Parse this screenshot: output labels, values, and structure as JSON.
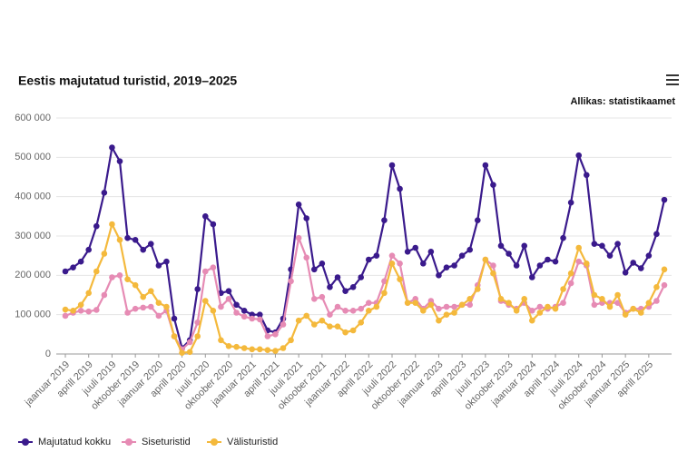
{
  "chart_data": {
    "type": "line",
    "title": "Eestis majutatud turistid, 2019–2025",
    "source": "Allikas: statistikaamet",
    "categories": [
      "jaanuar 2019",
      null,
      null,
      "aprill 2019",
      null,
      null,
      "juuli 2019",
      null,
      null,
      "oktoober 2019",
      null,
      null,
      "jaanuar 2020",
      null,
      null,
      "aprill 2020",
      null,
      null,
      "juuli 2020",
      null,
      null,
      "oktoober 2020",
      null,
      null,
      "jaanuar 2021",
      null,
      null,
      "aprill 2021",
      null,
      null,
      "juuli 2021",
      null,
      null,
      "oktoober 2021",
      null,
      null,
      "jaanuar 2022",
      null,
      null,
      "aprill 2022",
      null,
      null,
      "juuli 2022",
      null,
      null,
      "oktoober 2022",
      null,
      null,
      "jaanuar 2023",
      null,
      null,
      "aprill 2023",
      null,
      null,
      "juuli 2023",
      null,
      null,
      "oktoober 2023",
      null,
      null,
      "jaanuar 2024",
      null,
      null,
      "aprill 2024",
      null,
      null,
      "juuli 2024",
      null,
      null,
      "oktoober 2024",
      null,
      null,
      "jaanuar 2025",
      null,
      null,
      "aprill 2025",
      null,
      null
    ],
    "series": [
      {
        "name": "Majutatud kokku",
        "color": "#3a1a8c",
        "values": [
          210000,
          220000,
          235000,
          265000,
          325000,
          410000,
          525000,
          490000,
          295000,
          290000,
          265000,
          280000,
          225000,
          235000,
          90000,
          15000,
          35000,
          165000,
          350000,
          330000,
          155000,
          160000,
          125000,
          110000,
          100000,
          100000,
          60000,
          55000,
          90000,
          215000,
          380000,
          345000,
          215000,
          230000,
          170000,
          195000,
          160000,
          170000,
          195000,
          240000,
          250000,
          340000,
          480000,
          420000,
          260000,
          270000,
          230000,
          260000,
          200000,
          220000,
          225000,
          250000,
          265000,
          340000,
          480000,
          430000,
          275000,
          255000,
          225000,
          275000,
          195000,
          225000,
          240000,
          235000,
          295000,
          385000,
          505000,
          455000,
          280000,
          275000,
          250000,
          280000,
          207000,
          232000,
          218000,
          250000,
          305000,
          392000
        ]
      },
      {
        "name": "Siseturistid",
        "color": "#e68bb4",
        "values": [
          97000,
          105000,
          110000,
          108000,
          112000,
          150000,
          195000,
          200000,
          105000,
          115000,
          118000,
          120000,
          97000,
          110000,
          45000,
          12000,
          30000,
          80000,
          210000,
          220000,
          120000,
          140000,
          105000,
          95000,
          90000,
          88000,
          45000,
          50000,
          75000,
          185000,
          295000,
          245000,
          140000,
          145000,
          100000,
          120000,
          110000,
          110000,
          115000,
          130000,
          130000,
          185000,
          250000,
          230000,
          130000,
          140000,
          115000,
          135000,
          115000,
          120000,
          120000,
          125000,
          125000,
          175000,
          240000,
          225000,
          135000,
          125000,
          115000,
          130000,
          110000,
          120000,
          115000,
          120000,
          130000,
          180000,
          235000,
          225000,
          125000,
          130000,
          130000,
          130000,
          105000,
          115000,
          115000,
          120000,
          135000,
          175000
        ]
      },
      {
        "name": "Välisturistid",
        "color": "#f4b93c",
        "values": [
          113000,
          110000,
          125000,
          155000,
          210000,
          255000,
          330000,
          290000,
          190000,
          175000,
          145000,
          160000,
          130000,
          120000,
          45000,
          3000,
          5000,
          45000,
          135000,
          110000,
          35000,
          20000,
          18000,
          15000,
          12000,
          12000,
          10000,
          8000,
          15000,
          35000,
          85000,
          97000,
          75000,
          85000,
          70000,
          70000,
          55000,
          60000,
          80000,
          110000,
          120000,
          155000,
          230000,
          190000,
          130000,
          130000,
          110000,
          125000,
          85000,
          100000,
          105000,
          125000,
          140000,
          165000,
          240000,
          205000,
          140000,
          130000,
          110000,
          140000,
          85000,
          105000,
          120000,
          115000,
          165000,
          205000,
          270000,
          230000,
          150000,
          140000,
          120000,
          150000,
          100000,
          115000,
          105000,
          130000,
          170000,
          215000
        ]
      }
    ],
    "ylim": [
      0,
      600000
    ],
    "yticks": [
      {
        "value": 0,
        "label": "0"
      },
      {
        "value": 100000,
        "label": "100 000"
      },
      {
        "value": 200000,
        "label": "200 000"
      },
      {
        "value": 300000,
        "label": "300 000"
      },
      {
        "value": 400000,
        "label": "400 000"
      },
      {
        "value": 500000,
        "label": "500 000"
      },
      {
        "value": 600000,
        "label": "600 000"
      }
    ],
    "grid": true,
    "legend": "bottom"
  }
}
